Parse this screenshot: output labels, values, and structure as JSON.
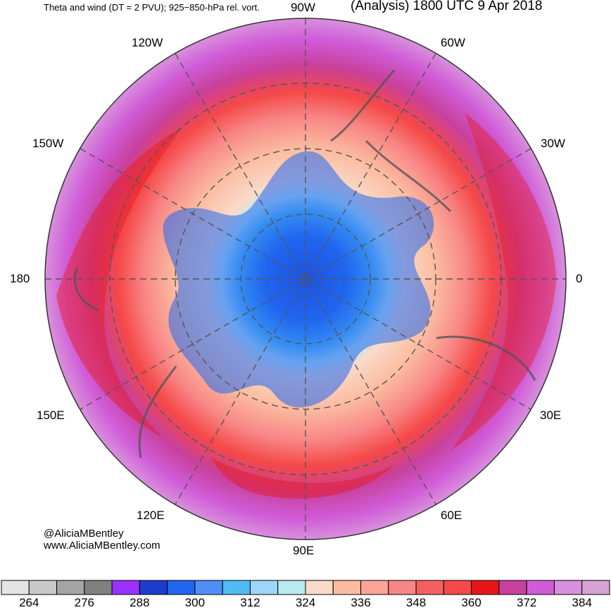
{
  "header": {
    "left_title": "Theta and wind (DT = 2 PVU); 925−850-hPa rel. vort.",
    "right_title": "(Analysis) 1800 UTC 9 Apr 2018"
  },
  "longitude_labels": {
    "lon_90w": "90W",
    "lon_120w": "120W",
    "lon_60w": "60W",
    "lon_150w": "150W",
    "lon_30w": "30W",
    "lon_180": "180",
    "lon_0": "0",
    "lon_150e": "150E",
    "lon_30e": "30E",
    "lon_120e": "120E",
    "lon_60e": "60E",
    "lon_90e": "90E"
  },
  "credits": {
    "handle": "@AliciaMBentley",
    "website": "www.AliciaMBentley.com"
  },
  "colorbar": {
    "colors": [
      "#e4e4e4",
      "#c8c8c8",
      "#a4a4a4",
      "#808080",
      "#9b30ff",
      "#1c3ccc",
      "#2066ee",
      "#4f8ff5",
      "#4fbcf5",
      "#9dd6f7",
      "#b9eaf2",
      "#fadac8",
      "#fbbca0",
      "#fba49a",
      "#f88686",
      "#f46060",
      "#f54848",
      "#e81616",
      "#c8409c",
      "#d05cd8",
      "#d890dc",
      "#d4a4d4"
    ],
    "ticks": [
      "264",
      "276",
      "288",
      "300",
      "312",
      "324",
      "336",
      "348",
      "360",
      "372",
      "384"
    ]
  }
}
